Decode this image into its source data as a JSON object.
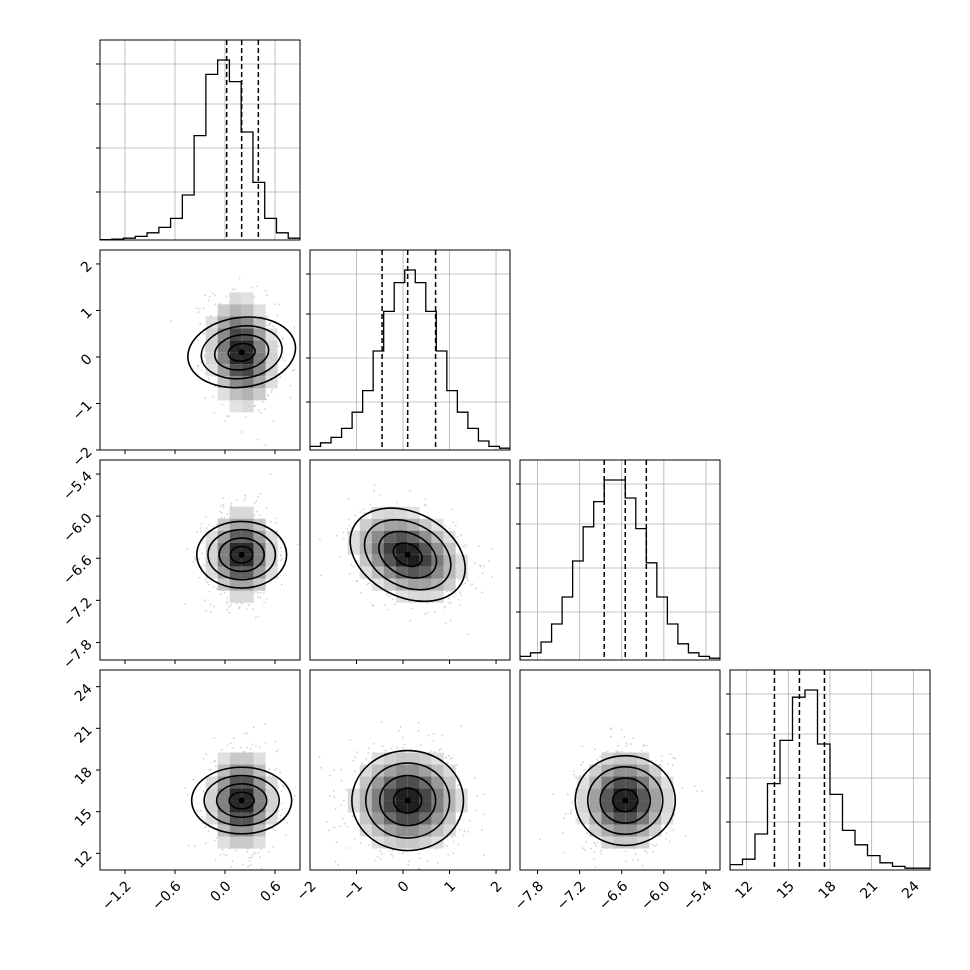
{
  "chart_data": {
    "type": "corner",
    "title": "",
    "parameters": [
      {
        "label": "",
        "range": [
          -1.5,
          0.9
        ],
        "ticks": [
          -1.2,
          -0.6,
          0.0,
          0.6
        ],
        "tick_labels": [
          "−1.2",
          "−0.6",
          "0.0",
          "0.6"
        ],
        "quantiles": [
          0.02,
          0.2,
          0.4
        ],
        "center": 0.2,
        "sigma": 0.2
      },
      {
        "label": "",
        "range": [
          -2.0,
          2.3
        ],
        "ticks": [
          -2,
          -1,
          0,
          1,
          2
        ],
        "tick_labels": [
          "−2",
          "−1",
          "0",
          "1",
          "2"
        ],
        "quantiles": [
          -0.45,
          0.1,
          0.7
        ],
        "center": 0.1,
        "sigma": 0.6
      },
      {
        "label": "",
        "range": [
          -8.05,
          -5.2
        ],
        "ticks": [
          -7.8,
          -7.2,
          -6.6,
          -6.0,
          -5.4
        ],
        "tick_labels": [
          "−7.8",
          "−7.2",
          "−6.6",
          "−6.0",
          "−5.4"
        ],
        "quantiles": [
          -6.85,
          -6.55,
          -6.25
        ],
        "center": -6.55,
        "sigma": 0.32
      },
      {
        "label": "",
        "range": [
          10.8,
          25.2
        ],
        "ticks": [
          12,
          15,
          18,
          21,
          24
        ],
        "tick_labels": [
          "12",
          "15",
          "18",
          "21",
          "24"
        ],
        "quantiles": [
          14.0,
          15.8,
          17.6
        ],
        "center": 15.8,
        "sigma": 1.8
      }
    ],
    "histograms": [
      [
        0.002,
        0.005,
        0.01,
        0.02,
        0.04,
        0.07,
        0.12,
        0.25,
        0.58,
        0.92,
        1.0,
        0.88,
        0.6,
        0.32,
        0.12,
        0.04,
        0.01
      ],
      [
        0.02,
        0.04,
        0.07,
        0.12,
        0.21,
        0.33,
        0.55,
        0.77,
        0.93,
        1.0,
        0.93,
        0.77,
        0.55,
        0.33,
        0.21,
        0.12,
        0.05,
        0.02,
        0.01
      ],
      [
        0.02,
        0.04,
        0.1,
        0.2,
        0.35,
        0.55,
        0.74,
        0.88,
        1.0,
        1.0,
        0.9,
        0.73,
        0.54,
        0.35,
        0.2,
        0.09,
        0.04,
        0.02,
        0.01
      ],
      [
        0.03,
        0.06,
        0.2,
        0.48,
        0.72,
        0.96,
        1.0,
        0.7,
        0.42,
        0.22,
        0.14,
        0.08,
        0.04,
        0.02,
        0.01,
        0.01
      ]
    ],
    "correlations": {
      "1-0": -0.15,
      "2-0": 0.0,
      "2-1": -0.3,
      "3-0": 0.0,
      "3-1": 0.0,
      "3-2": 0.0
    },
    "contour_levels_sigma": [
      0.5,
      1.0,
      1.5,
      2.0
    ],
    "quantile_line_style": "dashed",
    "grid": true,
    "colors": {
      "line": "#000000",
      "grid": "#b0b0b0",
      "scatter": "#bdbdbd"
    }
  }
}
